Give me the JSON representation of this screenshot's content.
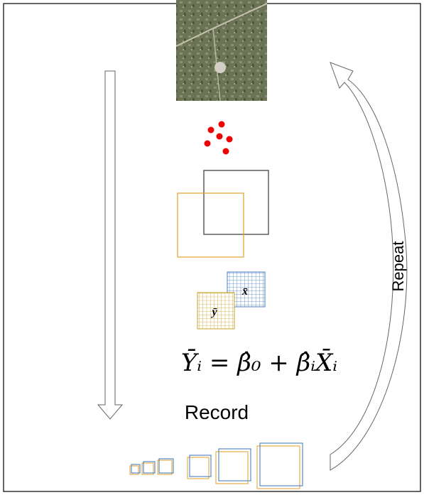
{
  "labels": {
    "x_bar": "x̄",
    "y_bar": "ȳ",
    "equation": "Ȳᵢ = β̂₀ + β̂ᵢX̄ᵢ",
    "record": "Record",
    "repeat": "Repeat"
  }
}
